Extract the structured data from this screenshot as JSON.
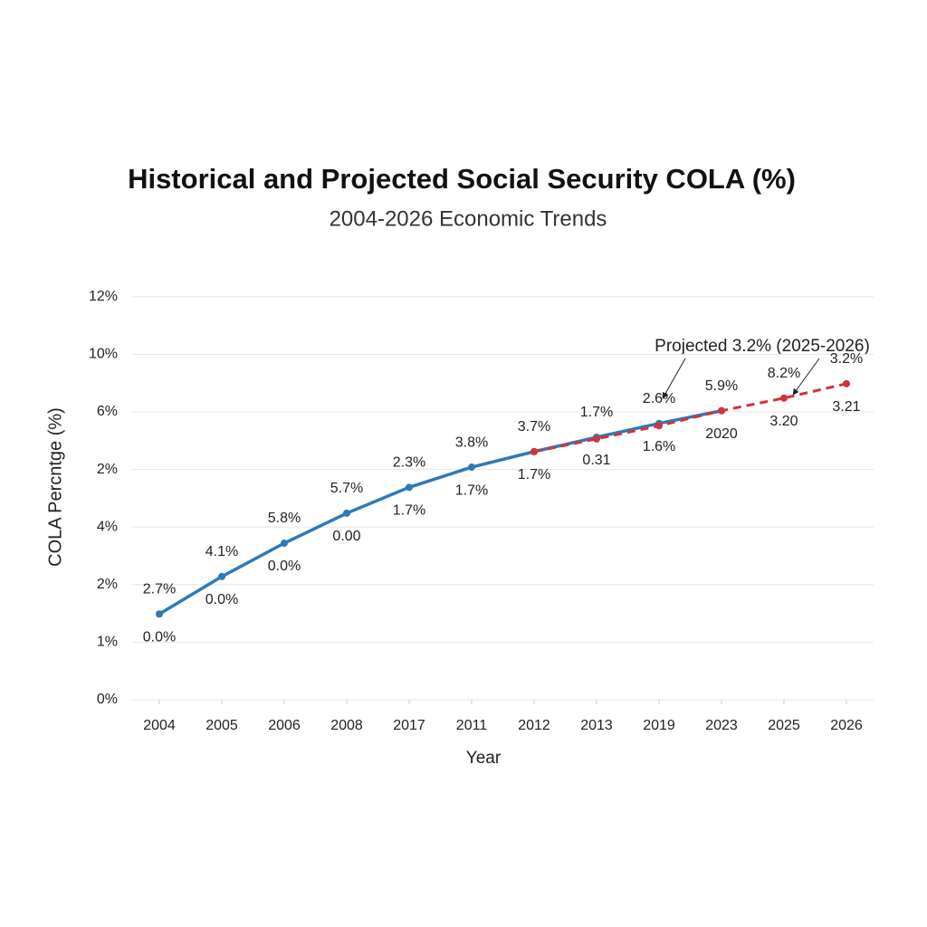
{
  "chart_data": {
    "type": "line",
    "title": "Historical and Projected Social Security COLA (%)",
    "subtitle": "2004-2026 Economic Trends",
    "x_label": "Year",
    "y_label": "COLA Percntge (%)",
    "categories": [
      "2004",
      "2005",
      "2006",
      "2008",
      "2017",
      "2011",
      "2012",
      "2013",
      "2019",
      "2023",
      "2025",
      "2026"
    ],
    "y_categories": [
      "0%",
      "1%",
      "2%",
      "4%",
      "2%",
      "6%",
      "10%",
      "12%"
    ],
    "grid": true,
    "series": [
      {
        "color": "#2e7ab8",
        "dash": false,
        "values": [
          1.49,
          2.14,
          2.72,
          3.24,
          3.69,
          4.04,
          4.31,
          4.56,
          4.8,
          5.02,
          null,
          null
        ]
      },
      {
        "color": "#d0343a",
        "dash": true,
        "values": [
          null,
          null,
          null,
          null,
          null,
          null,
          4.31,
          4.53,
          4.76,
          5.02,
          5.24,
          5.49
        ]
      }
    ],
    "labels_above": [
      "2.7%",
      "4.1%",
      "5.8%",
      "5.7%",
      "2.3%",
      "3.8%",
      "3.7%",
      "1.7%",
      "2.6%",
      "5.9%",
      "8.2%",
      "3.2%"
    ],
    "labels_below": [
      "0.0%",
      "0.0%",
      "0.0%",
      "0.00",
      "1.7%",
      "1.7%",
      "1.7%",
      "0.31",
      "1.6%",
      "2020",
      "3.20",
      "3.21"
    ],
    "annotation": "Projected 3.2% (2025-2026)"
  }
}
